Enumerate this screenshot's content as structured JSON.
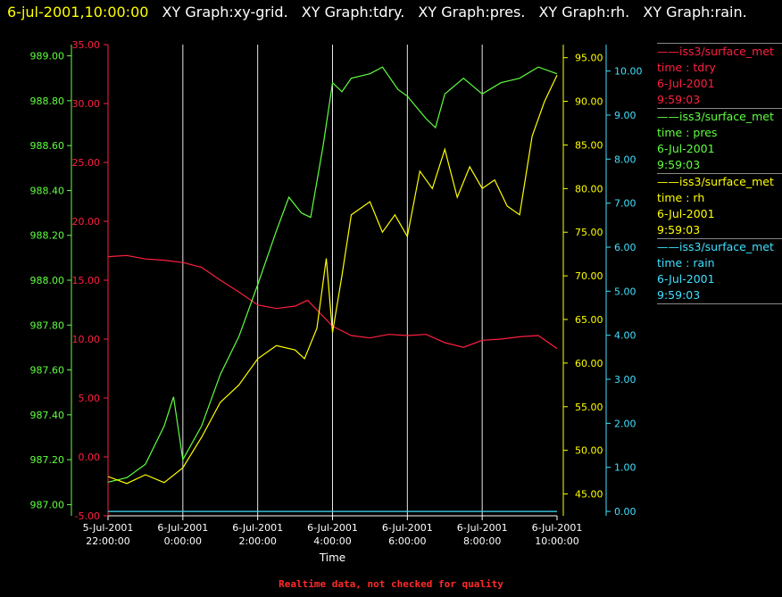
{
  "header": {
    "timestamp": "6-jul-2001,10:00:00",
    "titles": [
      "XY Graph:xy-grid.",
      "XY Graph:tdry.",
      "XY Graph:pres.",
      "XY Graph:rh.",
      "XY Graph:rain."
    ]
  },
  "legend": [
    {
      "source": "iss3/surface_met",
      "field": "time : tdry",
      "date": "6-Jul-2001",
      "time": "9:59:03",
      "color": "#ff2040"
    },
    {
      "source": "iss3/surface_met",
      "field": "time : pres",
      "date": "6-Jul-2001",
      "time": "9:59:03",
      "color": "#60ff40"
    },
    {
      "source": "iss3/surface_met",
      "field": "time : rh",
      "date": "6-Jul-2001",
      "time": "9:59:03",
      "color": "#ffff00"
    },
    {
      "source": "iss3/surface_met",
      "field": "time : rain",
      "date": "6-Jul-2001",
      "time": "9:59:03",
      "color": "#40e0ff"
    }
  ],
  "footer": "Realtime data, not checked for quality",
  "chart_data": {
    "type": "line",
    "xlabel": "Time",
    "x_ticks": [
      {
        "date": "5-Jul-2001",
        "time": "22:00:00"
      },
      {
        "date": "6-Jul-2001",
        "time": "0:00:00"
      },
      {
        "date": "6-Jul-2001",
        "time": "2:00:00"
      },
      {
        "date": "6-Jul-2001",
        "time": "4:00:00"
      },
      {
        "date": "6-Jul-2001",
        "time": "6:00:00"
      },
      {
        "date": "6-Jul-2001",
        "time": "8:00:00"
      },
      {
        "date": "6-Jul-2001",
        "time": "10:00:00"
      }
    ],
    "x_range": [
      "2001-07-05 22:00:00",
      "2001-07-06 10:00:00"
    ],
    "grid": "vertical",
    "axes": [
      {
        "name": "tdry",
        "color": "#ff2040",
        "ylim": [
          -5,
          35
        ],
        "ticks": [
          "-5.00",
          "0.00",
          "5.00",
          "10.00",
          "15.00",
          "20.00",
          "25.00",
          "30.00",
          "35.00"
        ]
      },
      {
        "name": "pres",
        "color": "#60ff40",
        "ylim": [
          986.95,
          989.05
        ],
        "ticks": [
          "987.00",
          "987.20",
          "987.40",
          "987.60",
          "987.80",
          "988.00",
          "988.20",
          "988.40",
          "988.60",
          "988.80",
          "989.00"
        ]
      },
      {
        "name": "rh",
        "color": "#ffff00",
        "ylim": [
          42.5,
          96.5
        ],
        "ticks": [
          "45.00",
          "50.00",
          "55.00",
          "60.00",
          "65.00",
          "70.00",
          "75.00",
          "80.00",
          "85.00",
          "90.00",
          "95.00"
        ]
      },
      {
        "name": "rain",
        "color": "#40e0ff",
        "ylim": [
          -0.1,
          10.6
        ],
        "ticks": [
          "0.00",
          "1.00",
          "2.00",
          "3.00",
          "4.00",
          "5.00",
          "6.00",
          "7.00",
          "8.00",
          "9.00",
          "10.00"
        ]
      }
    ],
    "series": [
      {
        "axis": "tdry",
        "x": [
          "2001-07-05 22:00",
          "2001-07-05 22:30",
          "2001-07-05 23:00",
          "2001-07-05 23:30",
          "2001-07-06 00:00",
          "2001-07-06 00:30",
          "2001-07-06 01:00",
          "2001-07-06 01:30",
          "2001-07-06 02:00",
          "2001-07-06 02:30",
          "2001-07-06 03:00",
          "2001-07-06 03:20",
          "2001-07-06 03:40",
          "2001-07-06 04:00",
          "2001-07-06 04:30",
          "2001-07-06 05:00",
          "2001-07-06 05:30",
          "2001-07-06 06:00",
          "2001-07-06 06:30",
          "2001-07-06 07:00",
          "2001-07-06 07:30",
          "2001-07-06 08:00",
          "2001-07-06 08:30",
          "2001-07-06 09:00",
          "2001-07-06 09:30",
          "2001-07-06 10:00"
        ],
        "y": [
          17.0,
          17.1,
          16.8,
          16.7,
          16.5,
          16.1,
          15.0,
          14.0,
          12.9,
          12.6,
          12.8,
          13.3,
          12.2,
          11.1,
          10.3,
          10.1,
          10.4,
          10.3,
          10.4,
          9.7,
          9.3,
          9.9,
          10.0,
          10.2,
          10.3,
          9.2
        ]
      },
      {
        "axis": "pres",
        "x": [
          "2001-07-05 22:00",
          "2001-07-05 22:30",
          "2001-07-05 23:00",
          "2001-07-05 23:30",
          "2001-07-05 23:45",
          "2001-07-06 00:00",
          "2001-07-06 00:30",
          "2001-07-06 01:00",
          "2001-07-06 01:30",
          "2001-07-06 02:00",
          "2001-07-06 02:30",
          "2001-07-06 02:50",
          "2001-07-06 03:10",
          "2001-07-06 03:25",
          "2001-07-06 03:45",
          "2001-07-06 04:00",
          "2001-07-06 04:15",
          "2001-07-06 04:30",
          "2001-07-06 05:00",
          "2001-07-06 05:20",
          "2001-07-06 05:45",
          "2001-07-06 06:00",
          "2001-07-06 06:30",
          "2001-07-06 06:45",
          "2001-07-06 07:00",
          "2001-07-06 07:30",
          "2001-07-06 08:00",
          "2001-07-06 08:30",
          "2001-07-06 09:00",
          "2001-07-06 09:30",
          "2001-07-06 10:00"
        ],
        "y": [
          987.1,
          987.12,
          987.18,
          987.35,
          987.48,
          987.2,
          987.35,
          987.58,
          987.75,
          987.98,
          988.22,
          988.37,
          988.3,
          988.28,
          988.6,
          988.88,
          988.84,
          988.9,
          988.92,
          988.95,
          988.85,
          988.82,
          988.72,
          988.68,
          988.83,
          988.9,
          988.83,
          988.88,
          988.9,
          988.95,
          988.92
        ]
      },
      {
        "axis": "rh",
        "x": [
          "2001-07-05 22:00",
          "2001-07-05 22:30",
          "2001-07-05 23:00",
          "2001-07-05 23:30",
          "2001-07-06 00:00",
          "2001-07-06 00:30",
          "2001-07-06 01:00",
          "2001-07-06 01:30",
          "2001-07-06 02:00",
          "2001-07-06 02:30",
          "2001-07-06 03:00",
          "2001-07-06 03:15",
          "2001-07-06 03:35",
          "2001-07-06 03:50",
          "2001-07-06 04:00",
          "2001-07-06 04:15",
          "2001-07-06 04:30",
          "2001-07-06 05:00",
          "2001-07-06 05:20",
          "2001-07-06 05:40",
          "2001-07-06 06:00",
          "2001-07-06 06:20",
          "2001-07-06 06:40",
          "2001-07-06 07:00",
          "2001-07-06 07:20",
          "2001-07-06 07:40",
          "2001-07-06 08:00",
          "2001-07-06 08:20",
          "2001-07-06 08:40",
          "2001-07-06 09:00",
          "2001-07-06 09:20",
          "2001-07-06 09:40",
          "2001-07-06 10:00"
        ],
        "y": [
          47.0,
          46.2,
          47.2,
          46.3,
          48.0,
          51.5,
          55.5,
          57.5,
          60.5,
          62.0,
          61.5,
          60.5,
          64.0,
          72.0,
          63.5,
          70.0,
          77.0,
          78.5,
          75.0,
          77.0,
          74.5,
          82.0,
          80.0,
          84.5,
          79.0,
          82.5,
          80.0,
          81.0,
          78.0,
          77.0,
          86.0,
          90.0,
          93.0
        ]
      },
      {
        "axis": "rain",
        "x": [
          "2001-07-05 22:00",
          "2001-07-06 10:00"
        ],
        "y": [
          0.0,
          0.0
        ]
      }
    ]
  }
}
